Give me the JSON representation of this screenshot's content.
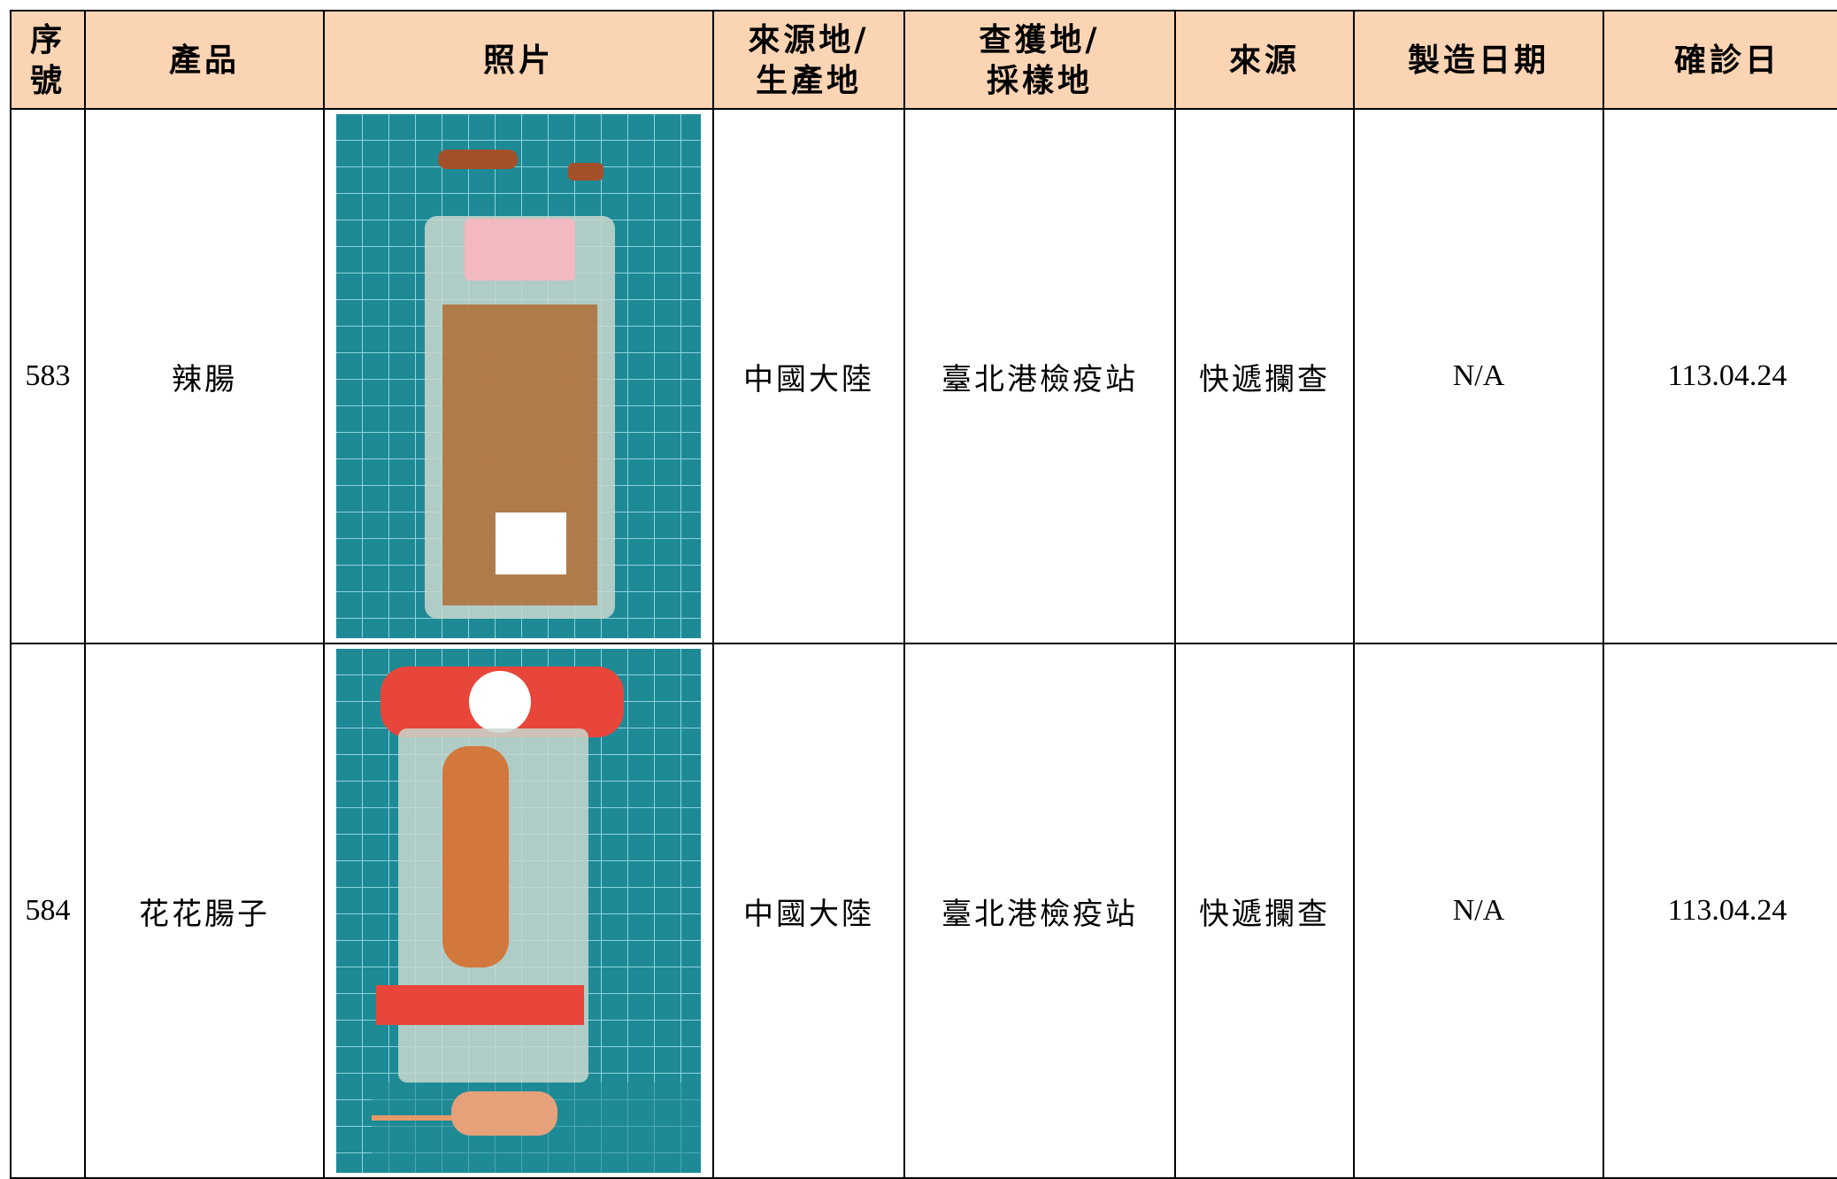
{
  "table": {
    "headers": [
      [
        "序",
        "號"
      ],
      [
        "產品"
      ],
      [
        "照片"
      ],
      [
        "來源地/",
        "生產地"
      ],
      [
        "查獲地/",
        "採樣地"
      ],
      [
        "來源"
      ],
      [
        "製造日期"
      ],
      [
        "確診日"
      ]
    ],
    "rows": [
      {
        "no": "583",
        "product": "辣腸",
        "origin": "中國大陸",
        "seized_at": "臺北港檢疫站",
        "source": "快遞攔查",
        "manufacture_date": "N/A",
        "confirmed_date": "113.04.24"
      },
      {
        "no": "584",
        "product": "花花腸子",
        "origin": "中國大陸",
        "seized_at": "臺北港檢疫站",
        "source": "快遞攔查",
        "manufacture_date": "N/A",
        "confirmed_date": "113.04.24"
      }
    ]
  }
}
